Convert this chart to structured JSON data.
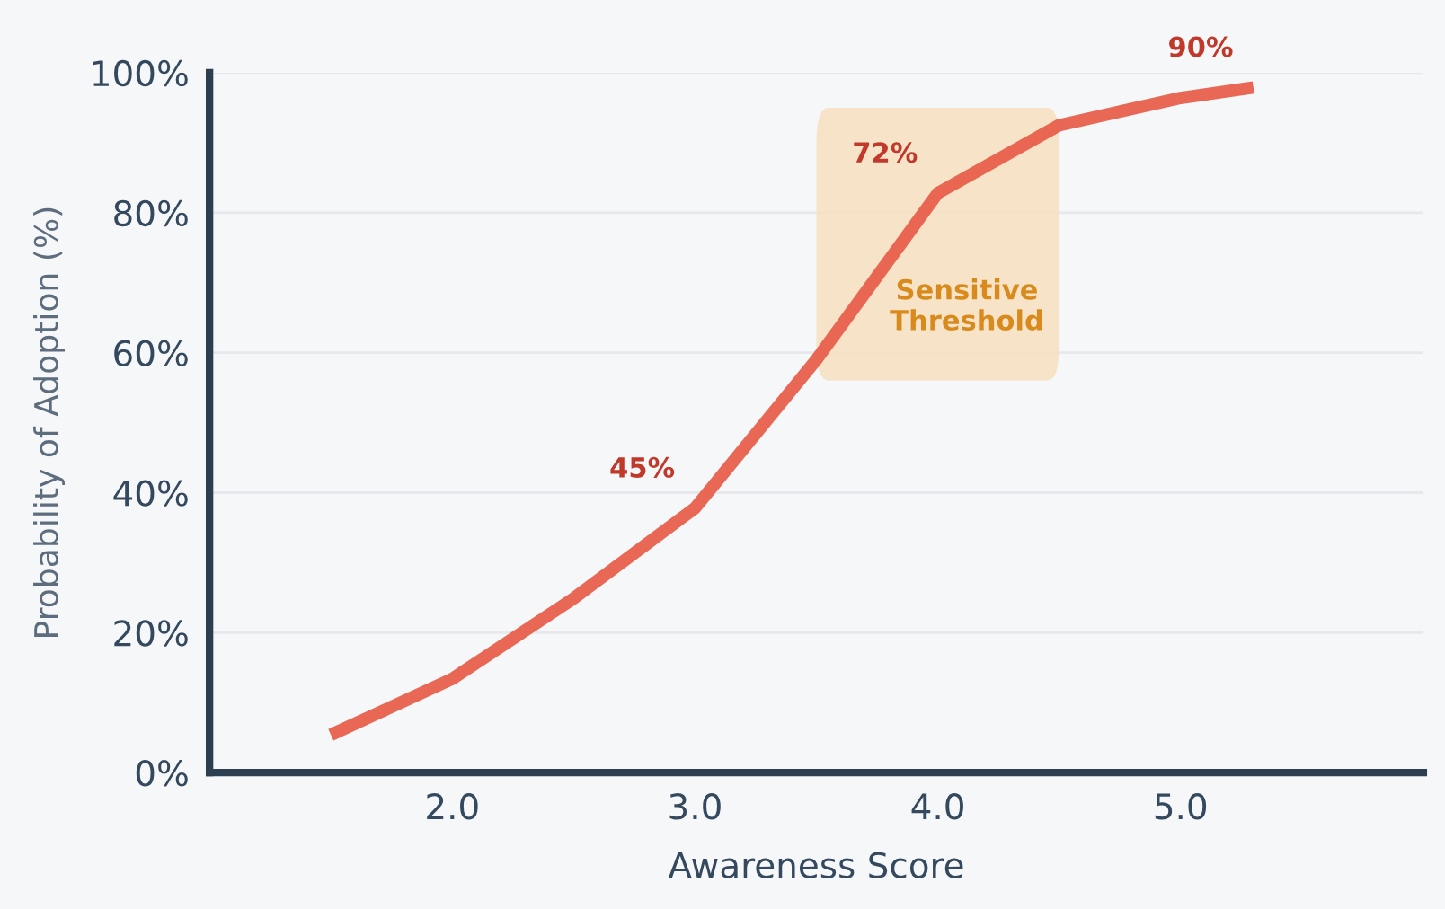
{
  "chart_data": {
    "type": "line",
    "xlabel": "Awareness Score",
    "ylabel": "Probability of Adoption (%)",
    "x": [
      1.5,
      2.0,
      2.5,
      3.0,
      3.5,
      4.0,
      4.5,
      5.0,
      5.3
    ],
    "series": [
      {
        "color": "#e8604c",
        "values": [
          5.4,
          13.4,
          24.9,
          37.8,
          59,
          82.8,
          92.5,
          96.4,
          97.9
        ]
      }
    ],
    "xlim": [
      1,
      6
    ],
    "ylim": [
      0,
      100
    ],
    "xticks": [
      {
        "value": 2,
        "label": "2.0"
      },
      {
        "value": 3,
        "label": "3.0"
      },
      {
        "value": 4,
        "label": "4.0"
      },
      {
        "value": 5,
        "label": "5.0"
      }
    ],
    "yticks": [
      {
        "value": 0,
        "label": "0%"
      },
      {
        "value": 20,
        "label": "20%"
      },
      {
        "value": 40,
        "label": "40%"
      },
      {
        "value": 60,
        "label": "60%"
      },
      {
        "value": 80,
        "label": "80%"
      },
      {
        "value": 100,
        "label": "100%"
      }
    ],
    "grid": "y",
    "marker": "none",
    "line_style": "solid",
    "bands": [
      {
        "axis": "x",
        "from": 3.5,
        "to": 4.5,
        "label": "Sensitive\nThreshold",
        "color": "#f7e1c0"
      }
    ],
    "annotations": [
      {
        "text": "45%",
        "x": 3.0,
        "y": 37.8
      },
      {
        "text": "72%",
        "x": 4.0,
        "y": 82.8
      },
      {
        "text": "90%",
        "x": 5.3,
        "y": 97.9
      }
    ]
  }
}
